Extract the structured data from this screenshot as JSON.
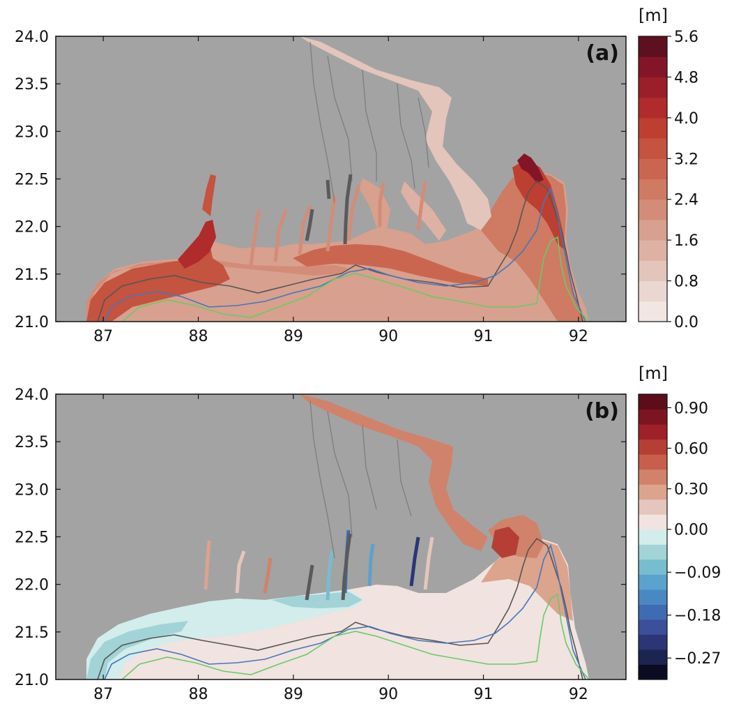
{
  "chart_data": [
    {
      "type": "heatmap",
      "panel_label": "(a)",
      "xlim": [
        86.5,
        92.5
      ],
      "ylim": [
        21.0,
        24.0
      ],
      "x_ticks": [
        "87",
        "88",
        "89",
        "90",
        "91",
        "92"
      ],
      "y_ticks": [
        "21.0",
        "21.5",
        "22.0",
        "22.5",
        "23.0",
        "23.5",
        "24.0"
      ],
      "background_color": "#a3a3a3",
      "colorbar": {
        "unit": "[m]",
        "range": [
          0.0,
          5.6
        ],
        "tick_labels": [
          "0.0",
          "0.8",
          "1.6",
          "2.4",
          "3.2",
          "4.0",
          "4.8",
          "5.6"
        ],
        "levels": 14,
        "colors": [
          "#f2e6e3",
          "#ead7d1",
          "#e3c5bb",
          "#ddb2a4",
          "#d8a08e",
          "#d38c78",
          "#cf7a63",
          "#ca6650",
          "#c4533f",
          "#bd3f31",
          "#b02b2b",
          "#9a1f2a",
          "#821628",
          "#5e1020"
        ]
      },
      "contour_colors": [
        "#555555",
        "#4477bb",
        "#66cc66"
      ]
    },
    {
      "type": "heatmap",
      "panel_label": "(b)",
      "xlim": [
        86.5,
        92.5
      ],
      "ylim": [
        21.0,
        24.0
      ],
      "x_ticks": [
        "87",
        "88",
        "89",
        "90",
        "91",
        "92"
      ],
      "y_ticks": [
        "21.0",
        "21.5",
        "22.0",
        "22.5",
        "23.0",
        "23.5",
        "24.0"
      ],
      "background_color": "#a3a3a3",
      "colorbar": {
        "unit": "[m]",
        "range": [
          -0.315,
          1.0
        ],
        "tick_labels": [
          "−0.27",
          "−0.18",
          "−0.09",
          "0.00",
          "0.30",
          "0.60",
          "0.90"
        ],
        "tick_values": [
          -0.27,
          -0.18,
          -0.09,
          0.0,
          0.3,
          0.6,
          0.9
        ],
        "colors": [
          "#0b0b22",
          "#1c2450",
          "#2c3575",
          "#3b4f9a",
          "#3f6bb2",
          "#4a88c4",
          "#5ba2cc",
          "#78bccf",
          "#a2d3d6",
          "#d3ecec",
          "#f1e3e0",
          "#e5c6bc",
          "#dca38d",
          "#d1826a",
          "#c6604c",
          "#b53f34",
          "#9e2129",
          "#7d1421",
          "#5b0e19"
        ]
      },
      "contour_colors": [
        "#555555",
        "#4477bb",
        "#66cc66"
      ]
    }
  ]
}
